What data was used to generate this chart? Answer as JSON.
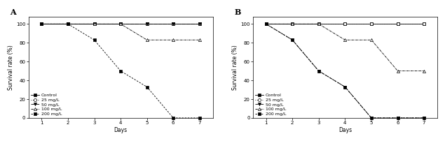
{
  "panel_A": {
    "label": "A",
    "series": [
      {
        "name": "Control",
        "days": [
          1,
          2,
          3,
          4,
          5,
          6,
          7
        ],
        "survival": [
          100,
          100,
          100,
          100,
          100,
          100,
          100
        ],
        "linestyle": "-",
        "marker": "s",
        "markersize": 3,
        "fillstyle": "full",
        "linewidth": 0.6
      },
      {
        "name": "25 mg/L",
        "days": [
          1,
          2,
          3,
          4,
          5,
          6,
          7
        ],
        "survival": [
          100,
          100,
          100,
          100,
          100,
          100,
          100
        ],
        "linestyle": "dotted",
        "marker": "o",
        "markersize": 3,
        "fillstyle": "none",
        "linewidth": 0.6
      },
      {
        "name": "50 mg/L",
        "days": [
          1,
          2,
          3,
          4,
          5,
          6,
          7
        ],
        "survival": [
          100,
          100,
          100,
          100,
          100,
          100,
          100
        ],
        "linestyle": "dashed_long",
        "marker": "v",
        "markersize": 3,
        "fillstyle": "full",
        "linewidth": 0.6
      },
      {
        "name": "100 mg/L",
        "days": [
          1,
          2,
          3,
          4,
          5,
          6,
          7
        ],
        "survival": [
          100,
          100,
          100,
          100,
          83,
          83,
          83
        ],
        "linestyle": "dashdot",
        "marker": "^",
        "markersize": 3,
        "fillstyle": "none",
        "linewidth": 0.6
      },
      {
        "name": "200 mg/L",
        "days": [
          1,
          2,
          3,
          4,
          5,
          6,
          7
        ],
        "survival": [
          100,
          100,
          83,
          50,
          33,
          0,
          0
        ],
        "linestyle": "dashed_short",
        "marker": "s",
        "markersize": 3,
        "fillstyle": "full",
        "linewidth": 0.6
      }
    ]
  },
  "panel_B": {
    "label": "B",
    "series": [
      {
        "name": "Control",
        "days": [
          1,
          2,
          3,
          4,
          5,
          6,
          7
        ],
        "survival": [
          100,
          100,
          100,
          100,
          100,
          100,
          100
        ],
        "linestyle": "-",
        "marker": "s",
        "markersize": 3,
        "fillstyle": "full",
        "linewidth": 0.6
      },
      {
        "name": "25 mg/L",
        "days": [
          1,
          2,
          3,
          4,
          5,
          6,
          7
        ],
        "survival": [
          100,
          100,
          100,
          100,
          100,
          100,
          100
        ],
        "linestyle": "dotted",
        "marker": "o",
        "markersize": 3,
        "fillstyle": "none",
        "linewidth": 0.6
      },
      {
        "name": "50 mg/L",
        "days": [
          1,
          2,
          3,
          4,
          5,
          6,
          7
        ],
        "survival": [
          100,
          83,
          50,
          33,
          0,
          0,
          0
        ],
        "linestyle": "dashed_long",
        "marker": "v",
        "markersize": 3,
        "fillstyle": "full",
        "linewidth": 0.6
      },
      {
        "name": "100 mg/L",
        "days": [
          1,
          2,
          3,
          4,
          5,
          6,
          7
        ],
        "survival": [
          100,
          100,
          100,
          83,
          83,
          50,
          50
        ],
        "linestyle": "dashdot",
        "marker": "^",
        "markersize": 3,
        "fillstyle": "none",
        "linewidth": 0.6
      },
      {
        "name": "200 mg/L",
        "days": [
          1,
          2,
          3,
          4,
          5,
          6,
          7
        ],
        "survival": [
          100,
          83,
          50,
          33,
          0,
          0,
          0
        ],
        "linestyle": "dashed_short",
        "marker": "s",
        "markersize": 3,
        "fillstyle": "full",
        "linewidth": 0.6
      }
    ]
  },
  "ylabel": "Survival rate (%)",
  "xlabel": "Days",
  "ylim": [
    0,
    108
  ],
  "yticks": [
    0,
    20,
    40,
    60,
    80,
    100
  ],
  "xticks": [
    1,
    2,
    3,
    4,
    5,
    6,
    7
  ],
  "legend_fontsize": 4.5,
  "axis_fontsize": 5.5,
  "tick_fontsize": 5,
  "label_fontsize": 8
}
